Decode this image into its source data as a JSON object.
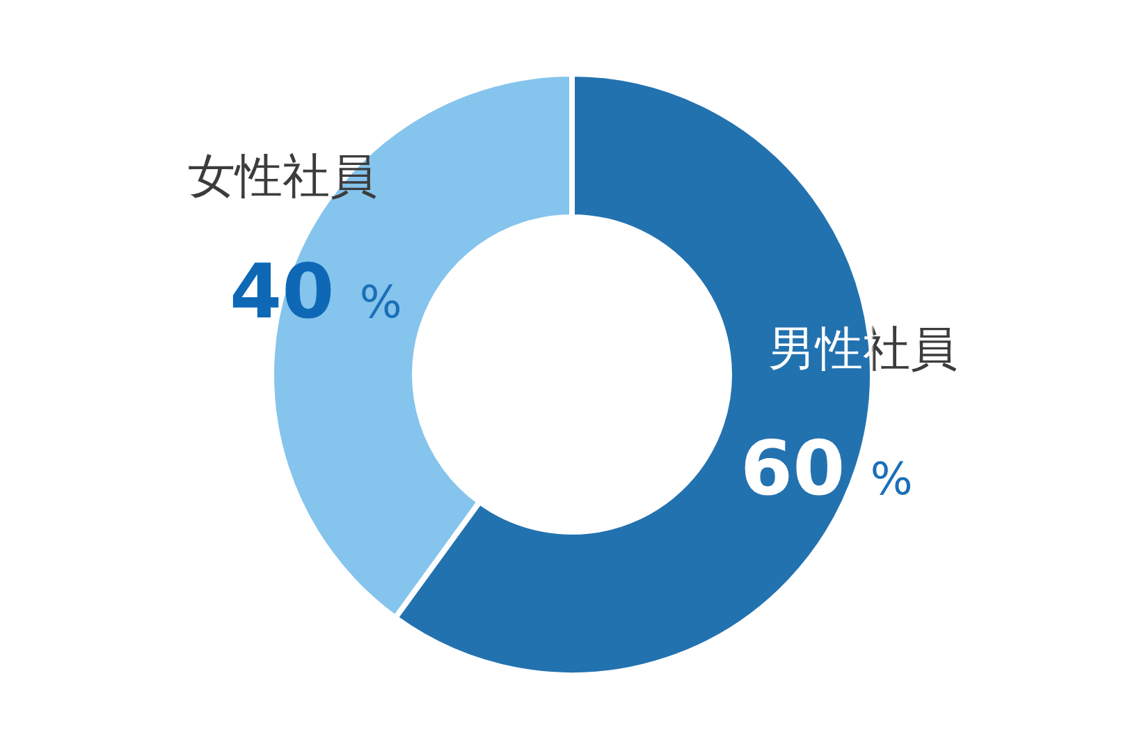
{
  "chart_data": {
    "type": "donut",
    "categories": [
      "男性社員",
      "女性社員"
    ],
    "values": [
      60,
      40
    ],
    "colors": [
      "#2372b0",
      "#85c4ec"
    ],
    "value_labels": [
      "60 %",
      "40 %"
    ]
  }
}
